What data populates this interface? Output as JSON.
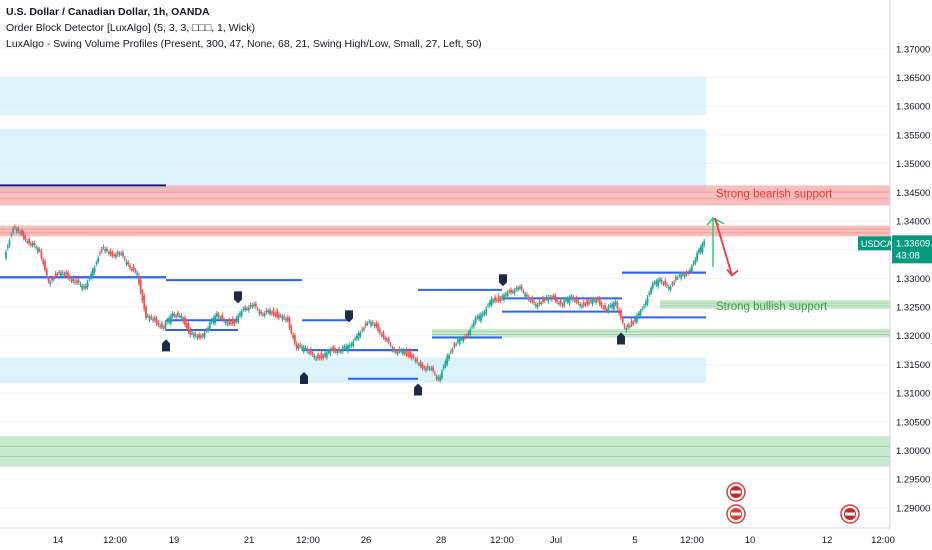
{
  "header": {
    "line1": "U.S. Dollar / Canadian Dollar, 1h, OANDA",
    "line2": "Order Block Detector [LuxAlgo] (5, 3, 3, □□□, 1, Wick)",
    "line3": "LuxAlgo - Swing Volume Profiles (Present, 300, 47, None, 68, 21, Swing High/Low, Small, 27, Left, 50)"
  },
  "price_badge": {
    "symbol": "USDCAD",
    "price": "1.33609",
    "countdown": "43:08"
  },
  "colors": {
    "up": "#26a69a",
    "down": "#ef5350",
    "bearish_zone": "#f7a8a8",
    "bullish_zone": "#b7e1bf",
    "blue_zone": "#bfe9f7",
    "swing_line": "#2962ff",
    "marker": "#1e2a45",
    "arrow": "#f23645"
  },
  "chart_data": {
    "type": "candlestick",
    "ylim": [
      1.2865,
      1.3785
    ],
    "y_ticks": [
      "1.29000",
      "1.29500",
      "1.30000",
      "1.30500",
      "1.31000",
      "1.31500",
      "1.32000",
      "1.32500",
      "1.33000",
      "1.33500",
      "1.34000",
      "1.34500",
      "1.35000",
      "1.35500",
      "1.36000",
      "1.36500",
      "1.37000"
    ],
    "x_ticks": [
      "14",
      "12:00",
      "19",
      "21",
      "12:00",
      "26",
      "28",
      "12:00",
      "Jul",
      "5",
      "12:00",
      "10",
      "12",
      "12:00"
    ],
    "price_path": [
      1.334,
      1.339,
      1.3375,
      1.336,
      1.3345,
      1.3295,
      1.331,
      1.3305,
      1.3295,
      1.328,
      1.3315,
      1.3355,
      1.334,
      1.3345,
      1.332,
      1.331,
      1.3235,
      1.3225,
      1.3215,
      1.3235,
      1.3235,
      1.3205,
      1.3195,
      1.3215,
      1.3235,
      1.3225,
      1.3225,
      1.3245,
      1.3255,
      1.3235,
      1.3245,
      1.3235,
      1.3225,
      1.318,
      1.3175,
      1.3165,
      1.3165,
      1.3175,
      1.3175,
      1.318,
      1.3205,
      1.3225,
      1.3215,
      1.3195,
      1.317,
      1.3175,
      1.3165,
      1.3145,
      1.3145,
      1.312,
      1.3165,
      1.319,
      1.3195,
      1.3225,
      1.3235,
      1.3265,
      1.3265,
      1.3275,
      1.3285,
      1.3265,
      1.3255,
      1.3265,
      1.3265,
      1.3255,
      1.3265,
      1.3255,
      1.326,
      1.326,
      1.3245,
      1.3255,
      1.3215,
      1.3225,
      1.3245,
      1.3285,
      1.3295,
      1.3285,
      1.3305,
      1.3305,
      1.3335,
      1.3361
    ],
    "order_blocks": [
      {
        "kind": "bearish",
        "y": [
          1.3427,
          1.3462
        ]
      },
      {
        "kind": "bearish",
        "y": [
          1.3373,
          1.3392
        ]
      },
      {
        "kind": "bullish",
        "y": [
          1.3247,
          1.3262
        ]
      },
      {
        "kind": "bullish",
        "y": [
          1.3197,
          1.3212
        ]
      },
      {
        "kind": "bullish",
        "y": [
          1.2972,
          1.3025
        ]
      }
    ],
    "volume_zones": [
      {
        "y": [
          1.3585,
          1.365
        ]
      },
      {
        "y": [
          1.345,
          1.356
        ]
      },
      {
        "y": [
          1.3118,
          1.3162
        ]
      }
    ],
    "swing_levels": [
      1.3458,
      1.3302,
      1.3297,
      1.3227,
      1.321,
      1.314,
      1.3175,
      1.3197,
      1.3125,
      1.328,
      1.3265,
      1.3232,
      1.3242,
      1.3232,
      1.331
    ],
    "annotations": [
      {
        "text": "Strong bearish support",
        "y": 1.3448,
        "color": "#e53935"
      },
      {
        "text": "Strong bullish support",
        "y": 1.3252,
        "color": "#43a047"
      }
    ]
  }
}
